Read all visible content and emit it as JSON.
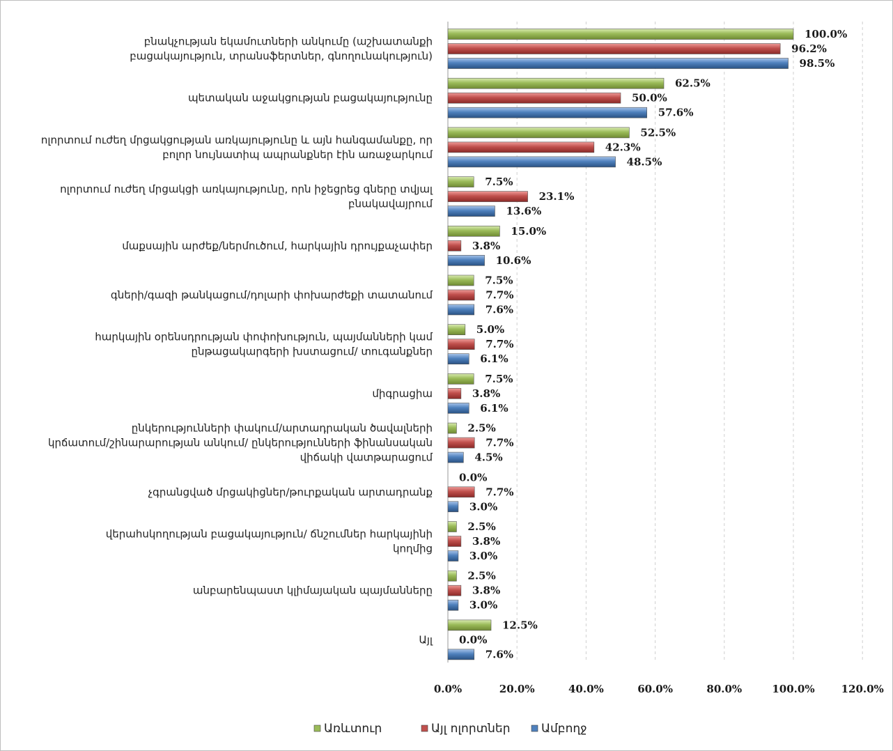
{
  "chart_data": {
    "type": "bar",
    "orientation": "horizontal",
    "categories": [
      [
        "բնակչության եկամուտների անկումը (աշխատանքի",
        "բացակայություն, տրանսֆերտներ, գնողունակություն)"
      ],
      [
        "պետական աջակցության բացակայությունը"
      ],
      [
        "ոլորտում ուժեղ մրցակցության առկայությունը և այն հանգամանքը, որ",
        "բոլոր նույնատիպ ապրանքներ էին առաջարկում"
      ],
      [
        "ոլորտում ուժեղ մրցակցի առկայությունը, որն իջեցրեց գները տվյալ",
        "բնակավայրում"
      ],
      [
        "մաքսային արժեք/ներմուծում, հարկային դրույքաչափեր"
      ],
      [
        "գների/գազի թանկացում/դոլարի փոխարժեքի տատանում"
      ],
      [
        "հարկային օրենսդրության փոփոխություն, պայմանների կամ",
        "ընթացակարգերի խստացում/ տուգանքներ"
      ],
      [
        "միգրացիա"
      ],
      [
        "ընկերությունների փակում/արտադրական ծավալների",
        "կրճատում/շինարարության անկում/ ընկերությունների ֆինանսական",
        "վիճակի վատթարացում"
      ],
      [
        "չգրանցված մրցակիցներ/թուրքական արտադրանք"
      ],
      [
        "վերահսկողության բացակայություն/ ճնշումներ հարկայինի",
        "կողմից"
      ],
      [
        "անբարենպաստ կլիմայական պայմանները"
      ],
      [
        "Այլ"
      ]
    ],
    "series": [
      {
        "name": "Առևտուր",
        "color": "#9bbb59",
        "values": [
          100.0,
          62.5,
          52.5,
          7.5,
          15.0,
          7.5,
          5.0,
          7.5,
          2.5,
          0.0,
          2.5,
          2.5,
          12.5
        ]
      },
      {
        "name": "Այլ ոլորտներ",
        "color": "#c0504d",
        "values": [
          96.2,
          50.0,
          42.3,
          23.1,
          3.8,
          7.7,
          7.7,
          3.8,
          7.7,
          7.7,
          3.8,
          3.8,
          0.0
        ]
      },
      {
        "name": "Ամբողջ",
        "color": "#4f81bd",
        "values": [
          98.5,
          57.6,
          48.5,
          13.6,
          10.6,
          7.6,
          6.1,
          6.1,
          4.5,
          3.0,
          3.0,
          3.0,
          7.6
        ]
      }
    ],
    "value_format": "%",
    "xlim": [
      0,
      120
    ],
    "xticks": [
      "0.0%",
      "20.0%",
      "40.0%",
      "60.0%",
      "80.0%",
      "100.0%",
      "120.0%"
    ],
    "grid": true,
    "legend_position": "bottom"
  }
}
